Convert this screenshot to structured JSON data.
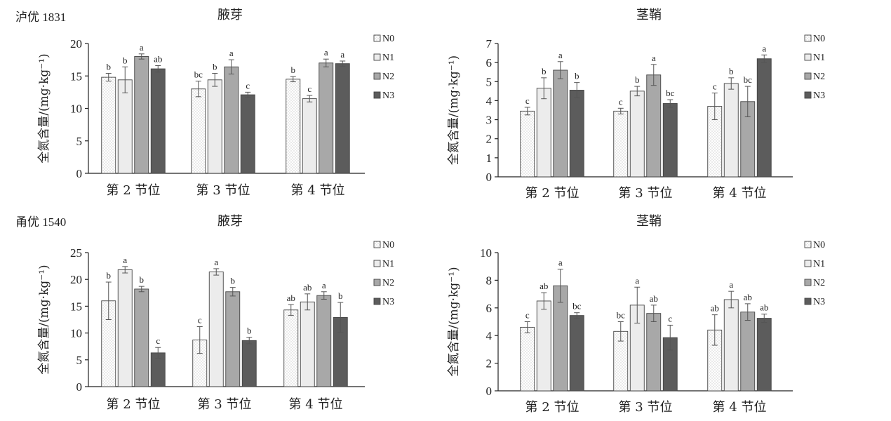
{
  "variety_labels": [
    "泸优 1831",
    "甬优 1540"
  ],
  "legend_items": [
    "N0",
    "N1",
    "N2",
    "N3"
  ],
  "colors": {
    "N0": "#ffffff",
    "N1": "#ececec",
    "N2": "#a8a8a8",
    "N3": "#5c5c5c",
    "axis": "#222222"
  },
  "chart_data": [
    {
      "type": "bar",
      "title": "腋芽",
      "ylabel": "全氮含量/(mg·kg⁻¹)",
      "ylim": [
        0,
        20
      ],
      "yticks": [
        0,
        5,
        10,
        15,
        20
      ],
      "categories": [
        "第 2 节位",
        "第 3 节位",
        "第 4 节位"
      ],
      "series": [
        {
          "name": "N0",
          "values": [
            14.8,
            13.0,
            14.5
          ],
          "errors": [
            0.6,
            1.2,
            0.4
          ],
          "letters": [
            "b",
            "bc",
            "b"
          ]
        },
        {
          "name": "N1",
          "values": [
            14.4,
            14.4,
            11.5
          ],
          "errors": [
            2.0,
            1.0,
            0.5
          ],
          "letters": [
            "b",
            "b",
            "c"
          ]
        },
        {
          "name": "N2",
          "values": [
            18.0,
            16.4,
            17.0
          ],
          "errors": [
            0.4,
            1.1,
            0.6
          ],
          "letters": [
            "a",
            "a",
            "a"
          ]
        },
        {
          "name": "N3",
          "values": [
            16.1,
            12.1,
            16.9
          ],
          "errors": [
            0.5,
            0.4,
            0.4
          ],
          "letters": [
            "ab",
            "c",
            "a"
          ]
        }
      ]
    },
    {
      "type": "bar",
      "title": "茎鞘",
      "ylabel": "全氮含量/(mg·kg⁻¹)",
      "ylim": [
        0,
        7
      ],
      "yticks": [
        0,
        1,
        2,
        3,
        4,
        5,
        6,
        7
      ],
      "categories": [
        "第 2 节位",
        "第 3 节位",
        "第 4 节位"
      ],
      "series": [
        {
          "name": "N0",
          "values": [
            3.45,
            3.45,
            3.7
          ],
          "errors": [
            0.2,
            0.15,
            0.7
          ],
          "letters": [
            "c",
            "c",
            "c"
          ]
        },
        {
          "name": "N1",
          "values": [
            4.65,
            4.5,
            4.9
          ],
          "errors": [
            0.55,
            0.25,
            0.3
          ],
          "letters": [
            "b",
            "b",
            "b"
          ]
        },
        {
          "name": "N2",
          "values": [
            5.6,
            5.35,
            3.95
          ],
          "errors": [
            0.45,
            0.55,
            0.8
          ],
          "letters": [
            "a",
            "a",
            "bc"
          ]
        },
        {
          "name": "N3",
          "values": [
            4.55,
            3.85,
            6.2
          ],
          "errors": [
            0.4,
            0.2,
            0.2
          ],
          "letters": [
            "b",
            "bc",
            "a"
          ]
        }
      ]
    },
    {
      "type": "bar",
      "title": "腋芽",
      "ylabel": "全氮含量/(mg·kg⁻¹)",
      "ylim": [
        0,
        25
      ],
      "yticks": [
        0,
        5,
        10,
        15,
        20,
        25
      ],
      "categories": [
        "第 2 节位",
        "第 3 节位",
        "第 4 节位"
      ],
      "series": [
        {
          "name": "N0",
          "values": [
            16.0,
            8.7,
            14.3
          ],
          "errors": [
            3.5,
            2.5,
            1.0
          ],
          "letters": [
            "b",
            "c",
            "ab"
          ]
        },
        {
          "name": "N1",
          "values": [
            21.8,
            21.4,
            15.8
          ],
          "errors": [
            0.6,
            0.6,
            1.5
          ],
          "letters": [
            "a",
            "a",
            "ab"
          ]
        },
        {
          "name": "N2",
          "values": [
            18.2,
            17.7,
            17.0
          ],
          "errors": [
            0.5,
            0.8,
            0.7
          ],
          "letters": [
            "b",
            "b",
            "a"
          ]
        },
        {
          "name": "N3",
          "values": [
            6.3,
            8.6,
            12.9
          ],
          "errors": [
            1.0,
            0.6,
            2.8
          ],
          "letters": [
            "c",
            "b",
            "b"
          ]
        }
      ]
    },
    {
      "type": "bar",
      "title": "茎鞘",
      "ylabel": "全氮含量/(mg·kg⁻¹)",
      "ylim": [
        0,
        10
      ],
      "yticks": [
        0,
        2,
        4,
        6,
        8,
        10
      ],
      "categories": [
        "第 2 节位",
        "第 3 节位",
        "第 4 节位"
      ],
      "series": [
        {
          "name": "N0",
          "values": [
            4.6,
            4.3,
            4.4
          ],
          "errors": [
            0.4,
            0.7,
            1.1
          ],
          "letters": [
            "c",
            "bc",
            "ab"
          ]
        },
        {
          "name": "N1",
          "values": [
            6.5,
            6.2,
            6.6
          ],
          "errors": [
            0.6,
            1.3,
            0.6
          ],
          "letters": [
            "ab",
            "a",
            "a"
          ]
        },
        {
          "name": "N2",
          "values": [
            7.6,
            5.6,
            5.7
          ],
          "errors": [
            1.2,
            0.6,
            0.6
          ],
          "letters": [
            "a",
            "ab",
            "ab"
          ]
        },
        {
          "name": "N3",
          "values": [
            5.45,
            3.85,
            5.25
          ],
          "errors": [
            0.2,
            0.9,
            0.3
          ],
          "letters": [
            "bc",
            "c",
            "ab"
          ]
        }
      ]
    }
  ]
}
